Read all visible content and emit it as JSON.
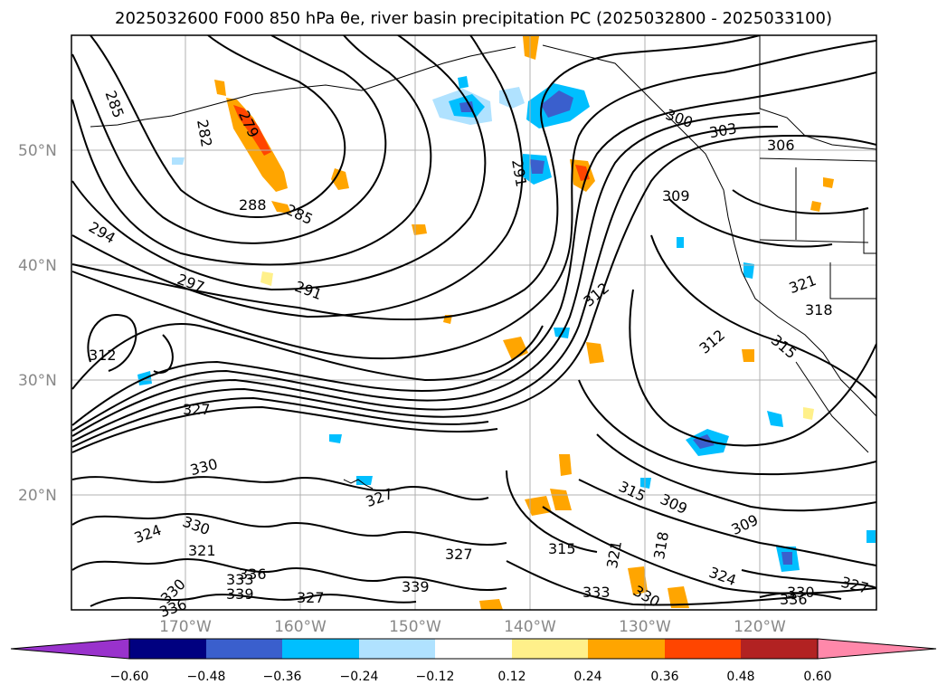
{
  "title": "2025032600 F000 850 hPa θe, river basin precipitation PC (2025032800 - 2025033100)",
  "map": {
    "lat_ticks": [
      "50°N",
      "40°N",
      "30°N",
      "20°N"
    ],
    "lon_ticks": [
      "170°W",
      "160°W",
      "150°W",
      "140°W",
      "130°W",
      "120°W"
    ],
    "contour_labels": [
      "285",
      "282",
      "279",
      "288",
      "285",
      "294",
      "297",
      "291",
      "291",
      "303",
      "306",
      "300",
      "309",
      "312",
      "321",
      "318",
      "312",
      "315",
      "312",
      "327",
      "330",
      "327",
      "324",
      "330",
      "321",
      "330",
      "336",
      "339",
      "333",
      "336",
      "339",
      "327",
      "327",
      "315",
      "309",
      "309",
      "315",
      "321",
      "318",
      "324",
      "333",
      "330",
      "327",
      "330",
      "336"
    ],
    "colors": {
      "contour": "#000000",
      "coast": "#000000",
      "grid": "#b0b0b0"
    }
  },
  "colorbar": {
    "labels": [
      "−0.60",
      "−0.48",
      "−0.36",
      "−0.24",
      "−0.12",
      "0.12",
      "0.24",
      "0.36",
      "0.48",
      "0.60"
    ],
    "colors": [
      "#9932cc",
      "#000080",
      "#3a5fcd",
      "#00bfff",
      "#b0e2ff",
      "#ffffff",
      "#fff08a",
      "#ffa500",
      "#ff4500",
      "#b22222",
      "#ff88aa"
    ]
  }
}
